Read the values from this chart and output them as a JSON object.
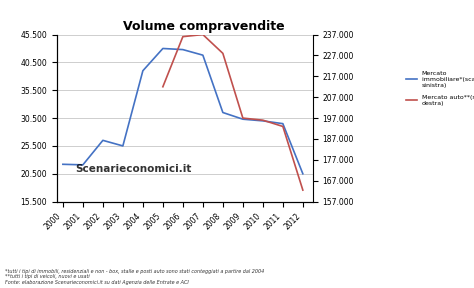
{
  "title": "Volume compravendite",
  "years": [
    2000,
    2001,
    2002,
    2003,
    2004,
    2005,
    2006,
    2007,
    2008,
    2009,
    2010,
    2011,
    2012
  ],
  "immobiliare": [
    22200,
    22100,
    26500,
    25500,
    39000,
    43000,
    42800,
    41800,
    31500,
    30300,
    30000,
    29500,
    20500
  ],
  "auto": [
    null,
    null,
    null,
    null,
    null,
    212000,
    236000,
    237000,
    228000,
    197000,
    196000,
    193000,
    162500
  ],
  "left_ylim": [
    15500,
    45500
  ],
  "right_ylim": [
    157000,
    237000
  ],
  "left_yticks": [
    15500,
    20500,
    25500,
    30500,
    35500,
    40500,
    45500
  ],
  "right_yticks": [
    157000,
    167000,
    177000,
    187000,
    197000,
    207000,
    217000,
    227000,
    237000
  ],
  "line_color_immobiliare": "#4472C4",
  "line_color_auto": "#C0504D",
  "watermark": "Scenarieconomici.it",
  "legend_immobiliare": "Mercato\nimmobiliare*(scala di\nsinistra)",
  "legend_auto": "Mercato auto**(scala di\ndestra)",
  "footnote1": "*tutti i tipi di immobili, residenziali e non - box, stalle e posti auto sono stati conteggiati a partire dal 2004",
  "footnote2": "**tutti i tipi di veicoli, nuovi e usati",
  "footnote3": "Fonte: elaborazione Scenarieconomici.it su dati Agenzia delle Entrate e ACI",
  "bg_color": "#FFFFFF"
}
